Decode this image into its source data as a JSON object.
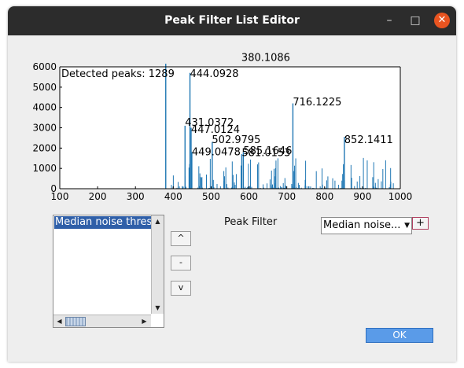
{
  "window": {
    "title": "Peak Filter List Editor",
    "minimize_icon": "minimize-icon",
    "maximize_icon": "maximize-icon",
    "close_icon": "close-icon",
    "close_color": "#e95420"
  },
  "chart_data": {
    "type": "bar",
    "title": "Detected peaks: 1289",
    "xlim": [
      100,
      1000
    ],
    "ylim": [
      0,
      6000
    ],
    "xticks": [
      100,
      200,
      300,
      400,
      500,
      600,
      700,
      800,
      900,
      1000
    ],
    "yticks": [
      0,
      1000,
      2000,
      3000,
      4000,
      5000,
      6000
    ],
    "color": "#1f77b4",
    "peaks": [
      {
        "x": 380.1086,
        "y": 6400
      },
      {
        "x": 444.0928,
        "y": 5700
      },
      {
        "x": 716.1225,
        "y": 4200
      },
      {
        "x": 431.0372,
        "y": 3100
      },
      {
        "x": 447.0124,
        "y": 3000
      },
      {
        "x": 502.9795,
        "y": 2300
      },
      {
        "x": 852.1411,
        "y": 2550
      },
      {
        "x": 449.0478,
        "y": 1800
      },
      {
        "x": 585.1646,
        "y": 1800
      },
      {
        "x": 581.0153,
        "y": 1700
      }
    ],
    "annotations": [
      {
        "text": "380.1086",
        "x": 580,
        "y": 6300
      },
      {
        "text": "444.0928",
        "x": 444,
        "y": 5500
      },
      {
        "text": "716.1225",
        "x": 716,
        "y": 4100
      },
      {
        "text": "431.0372",
        "x": 431,
        "y": 3100
      },
      {
        "text": "447.0124",
        "x": 447,
        "y": 2750
      },
      {
        "text": "502.9795",
        "x": 502,
        "y": 2250
      },
      {
        "text": "852.1411",
        "x": 852,
        "y": 2250
      },
      {
        "text": "449.0478",
        "x": 449,
        "y": 1650
      },
      {
        "text": "585.1646",
        "x": 585,
        "y": 1700
      },
      {
        "text": "581.0153",
        "x": 581,
        "y": 1600
      }
    ]
  },
  "filters": {
    "items": [
      "Median noise threshold"
    ]
  },
  "move_up_label": "^",
  "remove_label": "-",
  "move_down_label": "v",
  "peak_filter_label": "Peak Filter",
  "combo_value": "Median noise...",
  "add_label": "+",
  "ok_label": "OK"
}
